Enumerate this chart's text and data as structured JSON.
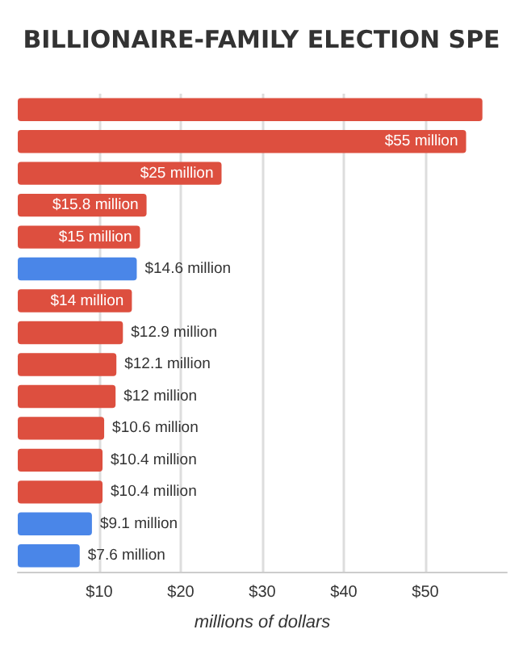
{
  "chart_data": {
    "type": "bar",
    "orientation": "horizontal",
    "title": "BILLIONAIRE-FAMILY ELECTION SPE",
    "xlabel": "millions of dollars",
    "categories": [
      null,
      null,
      null,
      null,
      null,
      null,
      null,
      null,
      null,
      null,
      null,
      null,
      null,
      null,
      null
    ],
    "values": [
      57,
      55,
      25,
      15.8,
      15,
      14.6,
      14,
      12.9,
      12.1,
      12,
      10.6,
      10.4,
      10.4,
      9.1,
      7.6
    ],
    "colors": [
      "#dd4f3f",
      "#dd4f3f",
      "#dd4f3f",
      "#dd4f3f",
      "#dd4f3f",
      "#4a86e8",
      "#dd4f3f",
      "#dd4f3f",
      "#dd4f3f",
      "#dd4f3f",
      "#dd4f3f",
      "#dd4f3f",
      "#dd4f3f",
      "#4a86e8",
      "#4a86e8"
    ],
    "value_labels": [
      null,
      "$55 million",
      "$25 million",
      "$15.8 million",
      "$15 million",
      "$14.6 million",
      "$14 million",
      "$12.9 million",
      "$12.1 million",
      "$12 million",
      "$10.6 million",
      "$10.4 million",
      "$10.4 million",
      "$9.1 million",
      "$7.6 million"
    ],
    "xlim": [
      0,
      60
    ],
    "xticks": [
      {
        "value": 10,
        "label": "$10"
      },
      {
        "value": 20,
        "label": "$20"
      },
      {
        "value": 30,
        "label": "$30"
      },
      {
        "value": 40,
        "label": "$40"
      },
      {
        "value": 50,
        "label": "$50"
      }
    ],
    "grid": "x"
  }
}
